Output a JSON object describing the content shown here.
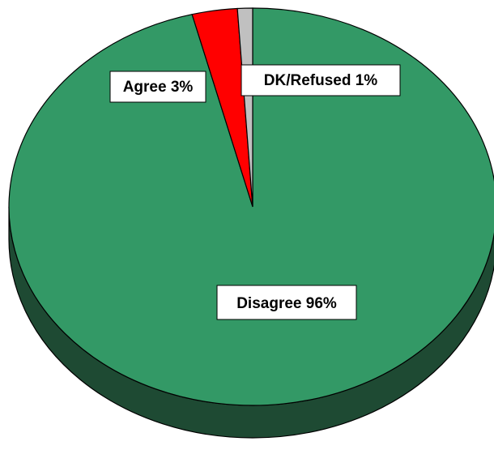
{
  "chart_data": {
    "type": "pie",
    "title": "",
    "style": "3d",
    "slices": [
      {
        "label": "Disagree",
        "value": 96,
        "display": "Disagree 96%",
        "color": "#339966"
      },
      {
        "label": "Agree",
        "value": 3,
        "display": "Agree 3%",
        "color": "#ff0000"
      },
      {
        "label": "DK/Refused",
        "value": 1,
        "display": "DK/Refused 1%",
        "color": "#c0c0c0"
      }
    ],
    "side_color": "#1e4a33",
    "legend": "none"
  }
}
